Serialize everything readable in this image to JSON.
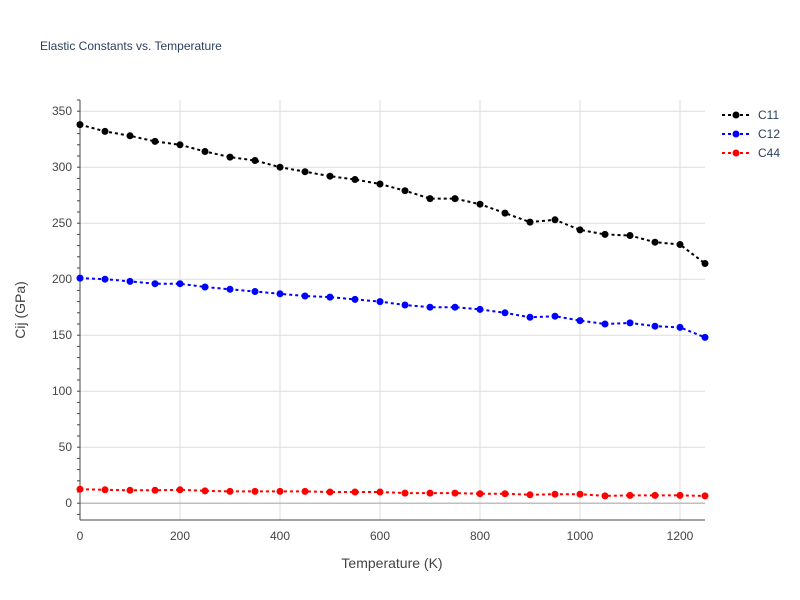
{
  "chart_data": {
    "type": "line",
    "title": "Elastic Constants vs. Temperature",
    "xlabel": "Temperature (K)",
    "ylabel": "Cij (GPa)",
    "xlim": [
      0,
      1250
    ],
    "ylim": [
      -15,
      360
    ],
    "x_ticks": [
      0,
      200,
      400,
      600,
      800,
      1000,
      1200
    ],
    "y_ticks": [
      0,
      50,
      100,
      150,
      200,
      250,
      300,
      350
    ],
    "grid": true,
    "legend_position": "top-right",
    "x": [
      0,
      50,
      100,
      150,
      200,
      250,
      300,
      350,
      400,
      450,
      500,
      550,
      600,
      650,
      700,
      750,
      800,
      850,
      900,
      950,
      1000,
      1050,
      1100,
      1150,
      1200,
      1250
    ],
    "series": [
      {
        "name": "C11",
        "color": "#000000",
        "values": [
          338,
          332,
          328,
          323,
          320,
          314,
          309,
          306,
          300,
          296,
          292,
          289,
          285,
          279,
          272,
          272,
          267,
          259,
          251,
          253,
          244,
          240,
          239,
          233,
          231,
          214
        ]
      },
      {
        "name": "C12",
        "color": "#0000ff",
        "values": [
          201,
          200,
          198,
          196,
          196,
          193,
          191,
          189,
          187,
          185,
          184,
          182,
          180,
          177,
          175,
          175,
          173,
          170,
          166,
          167,
          163,
          160,
          161,
          158,
          157,
          148
        ]
      },
      {
        "name": "C44",
        "color": "#ff0000",
        "values": [
          12.5,
          12,
          11.5,
          11.5,
          12,
          11,
          10.5,
          10.5,
          10.5,
          10.5,
          10,
          10,
          10,
          9,
          9,
          9,
          8.5,
          8.5,
          7.5,
          8,
          8,
          6.5,
          7,
          7,
          7,
          6.5
        ]
      }
    ]
  }
}
